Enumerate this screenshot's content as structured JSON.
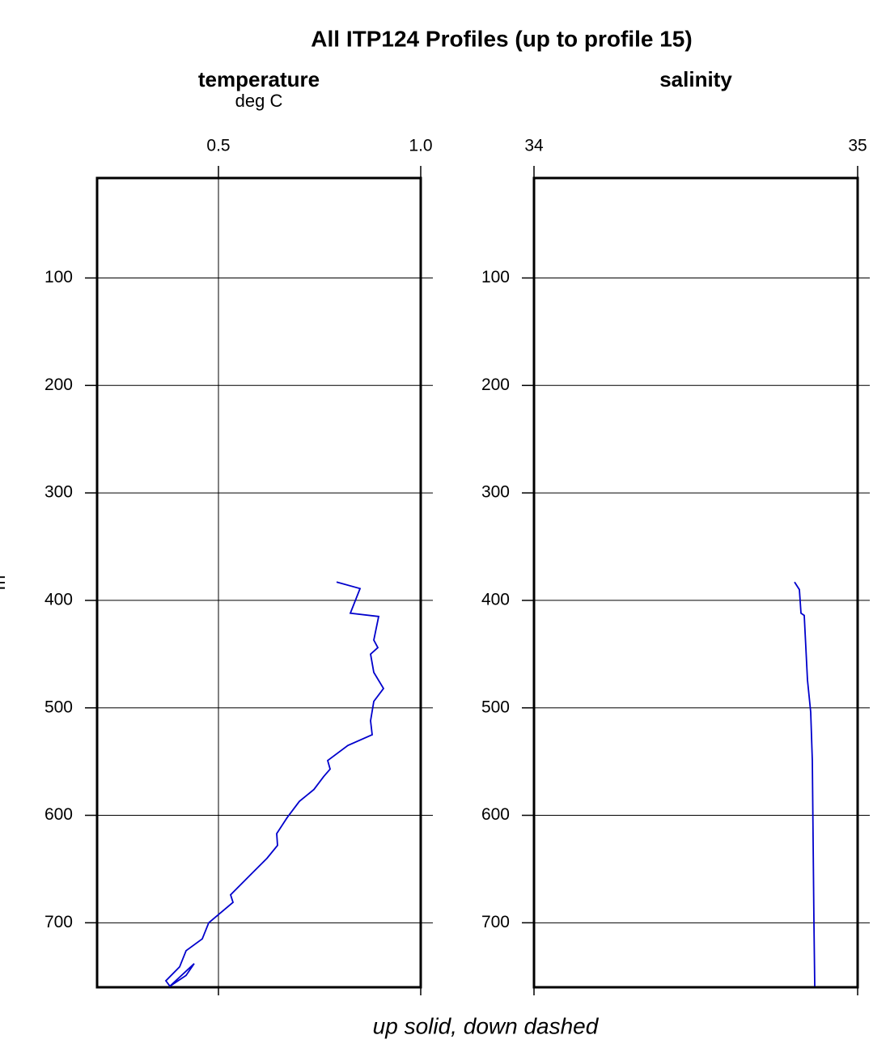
{
  "title": "All ITP124 Profiles (up to profile 15)",
  "footer": "up solid, down dashed",
  "ylabel": "m",
  "chart_data": [
    {
      "type": "line",
      "title": "temperature",
      "subtitle": "deg C",
      "xlim": [
        0.2,
        1.0
      ],
      "xticks": [
        0.5,
        {
          "value": 1,
          "label": "1.0"
        }
      ],
      "ylim": [
        7,
        760
      ],
      "y_inverted": true,
      "yticks": [
        100,
        200,
        300,
        400,
        500,
        600,
        700
      ],
      "grid": true,
      "series": [
        {
          "color": "#0000cc",
          "x": [
            0.792,
            0.85,
            0.826,
            0.896,
            0.884,
            0.894,
            0.876,
            0.884,
            0.908,
            0.884,
            0.876,
            0.88,
            0.82,
            0.77,
            0.776,
            0.76,
            0.736,
            0.7,
            0.67,
            0.644,
            0.646,
            0.62,
            0.58,
            0.53,
            0.536,
            0.476,
            0.46,
            0.42,
            0.404,
            0.37,
            0.38,
            0.44,
            0.42,
            0.38
          ],
          "y": [
            383,
            389,
            412,
            415,
            437,
            444,
            450,
            467,
            482,
            494,
            512,
            525,
            535,
            549,
            557,
            564,
            576,
            587,
            602,
            617,
            628,
            640,
            655,
            674,
            681,
            700,
            715,
            726,
            741,
            754,
            759,
            738,
            749,
            759
          ]
        }
      ]
    },
    {
      "type": "line",
      "title": "salinity",
      "xlim": [
        34,
        35
      ],
      "xticks": [
        34,
        35
      ],
      "ylim": [
        7,
        760
      ],
      "y_inverted": true,
      "yticks": [
        100,
        200,
        300,
        400,
        500,
        600,
        700
      ],
      "grid": true,
      "series": [
        {
          "color": "#0000cc",
          "x": [
            34.805,
            34.82,
            34.825,
            34.835,
            34.845,
            34.855,
            34.86,
            34.8625,
            34.865,
            34.8675
          ],
          "y": [
            383,
            390,
            412,
            414,
            474,
            504,
            549,
            625,
            700,
            759
          ]
        }
      ]
    }
  ]
}
